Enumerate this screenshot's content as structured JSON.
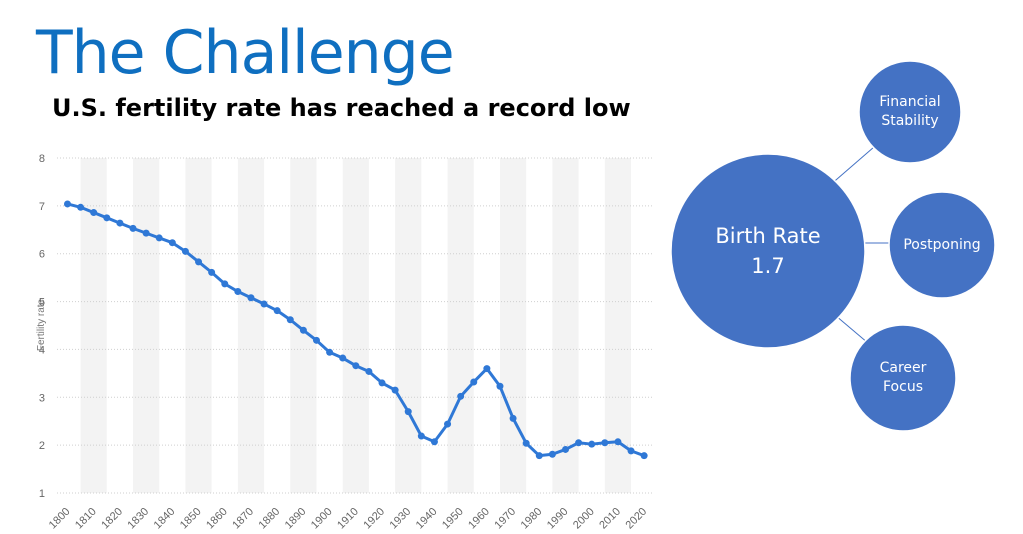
{
  "slide": {
    "title": "The Challenge"
  },
  "chart_data": {
    "type": "line",
    "title": "U.S. fertility rate has reached a record low",
    "y_label": "Fertility rate",
    "x": [
      1800,
      1805,
      1810,
      1815,
      1820,
      1825,
      1830,
      1835,
      1840,
      1845,
      1850,
      1855,
      1860,
      1865,
      1870,
      1875,
      1880,
      1885,
      1890,
      1895,
      1900,
      1905,
      1910,
      1915,
      1920,
      1925,
      1930,
      1935,
      1940,
      1945,
      1950,
      1955,
      1960,
      1965,
      1970,
      1975,
      1980,
      1985,
      1990,
      1995,
      2000,
      2005,
      2010,
      2015,
      2020
    ],
    "values": [
      7.04,
      6.97,
      6.86,
      6.75,
      6.64,
      6.53,
      6.43,
      6.33,
      6.23,
      6.05,
      5.83,
      5.61,
      5.37,
      5.21,
      5.08,
      4.95,
      4.81,
      4.62,
      4.4,
      4.19,
      3.94,
      3.82,
      3.66,
      3.54,
      3.3,
      3.15,
      2.7,
      2.19,
      2.07,
      2.44,
      3.02,
      3.32,
      3.6,
      3.23,
      2.56,
      2.04,
      1.78,
      1.81,
      1.91,
      2.05,
      2.02,
      2.05,
      2.07,
      1.88,
      1.78
    ],
    "color": "#2f78d6",
    "xlim": [
      1796,
      2023
    ],
    "xticks": [
      1800,
      1810,
      1820,
      1830,
      1840,
      1850,
      1860,
      1870,
      1880,
      1890,
      1900,
      1910,
      1920,
      1930,
      1940,
      1950,
      1960,
      1970,
      1980,
      1990,
      2000,
      2010,
      2020
    ],
    "ylim": [
      1,
      8
    ],
    "yticks": [
      1,
      2,
      3,
      4,
      5,
      6,
      7,
      8
    ],
    "grid": true
  },
  "diagram": {
    "center": {
      "label": "Birth Rate",
      "value": 1.7
    },
    "nodes": [
      {
        "label": "Financial Stability"
      },
      {
        "label": "Postponing"
      },
      {
        "label": "Career Focus"
      }
    ]
  }
}
